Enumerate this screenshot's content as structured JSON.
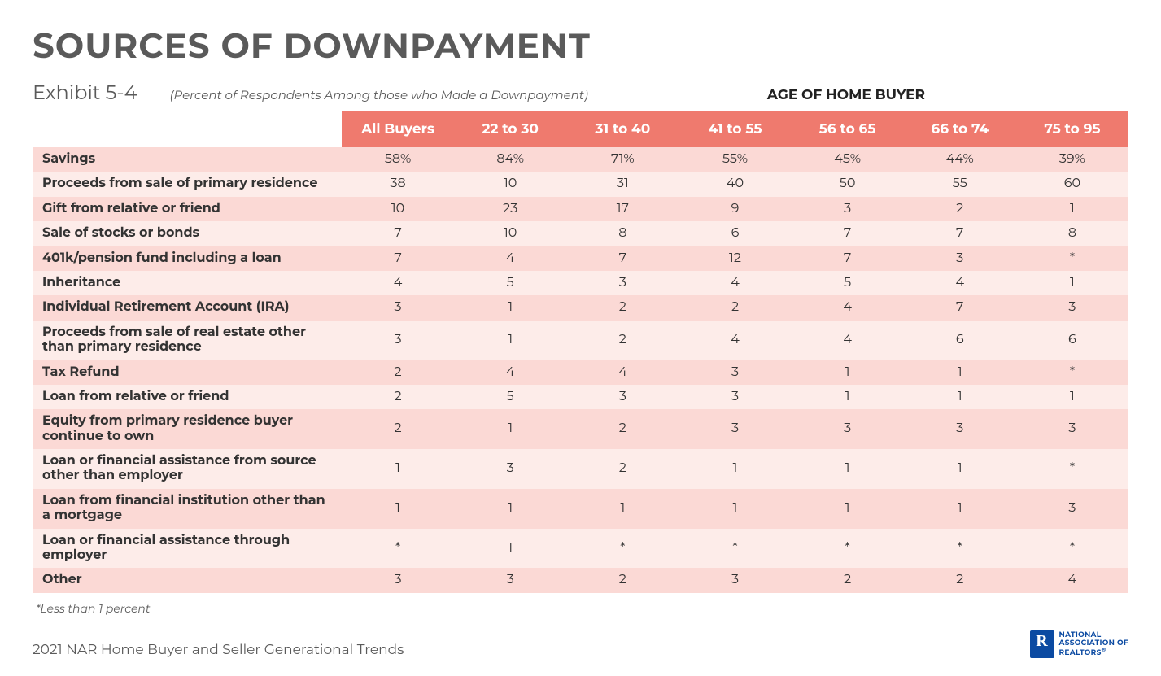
{
  "page": {
    "title": "SOURCES OF DOWNPAYMENT",
    "exhibit": "Exhibit 5-4",
    "subtitle_paren": "(Percent of Respondents Among those who Made a Downpayment)",
    "age_header": "AGE OF HOME BUYER",
    "footnote": "*Less than 1 percent",
    "source_line": "2021 NAR Home Buyer and Seller Generational Trends",
    "logo": {
      "line1": "NATIONAL",
      "line2": "ASSOCIATION OF",
      "line3": "REALTORS",
      "reg": "®"
    }
  },
  "table": {
    "type": "table",
    "header_bg": "#ef7a6e",
    "header_text_color": "#ffffff",
    "row_colors": {
      "odd": "#fbd9d5",
      "even": "#fdece9"
    },
    "label_fontweight": 700,
    "cell_fontsize": 16,
    "header_fontsize": 17,
    "columns": [
      "All Buyers",
      "22 to 30",
      "31 to 40",
      "41 to 55",
      "56 to 65",
      "66 to 74",
      "75 to 95"
    ],
    "rows": [
      {
        "label": "Savings",
        "values": [
          "58%",
          "84%",
          "71%",
          "55%",
          "45%",
          "44%",
          "39%"
        ]
      },
      {
        "label": "Proceeds from sale of primary residence",
        "values": [
          "38",
          "10",
          "31",
          "40",
          "50",
          "55",
          "60"
        ]
      },
      {
        "label": "Gift from relative or friend",
        "values": [
          "10",
          "23",
          "17",
          "9",
          "3",
          "2",
          "1"
        ]
      },
      {
        "label": "Sale of stocks or bonds",
        "values": [
          "7",
          "10",
          "8",
          "6",
          "7",
          "7",
          "8"
        ]
      },
      {
        "label": "401k/pension fund including a loan",
        "values": [
          "7",
          "4",
          "7",
          "12",
          "7",
          "3",
          "*"
        ]
      },
      {
        "label": "Inheritance",
        "values": [
          "4",
          "5",
          "3",
          "4",
          "5",
          "4",
          "1"
        ]
      },
      {
        "label": "Individual Retirement Account (IRA)",
        "values": [
          "3",
          "1",
          "2",
          "2",
          "4",
          "7",
          "3"
        ]
      },
      {
        "label": "Proceeds from sale of real estate other than primary residence",
        "values": [
          "3",
          "1",
          "2",
          "4",
          "4",
          "6",
          "6"
        ]
      },
      {
        "label": "Tax Refund",
        "values": [
          "2",
          "4",
          "4",
          "3",
          "1",
          "1",
          "*"
        ]
      },
      {
        "label": "Loan from relative or friend",
        "values": [
          "2",
          "5",
          "3",
          "3",
          "1",
          "1",
          "1"
        ]
      },
      {
        "label": "Equity from primary residence buyer continue to own",
        "values": [
          "2",
          "1",
          "2",
          "3",
          "3",
          "3",
          "3"
        ]
      },
      {
        "label": "Loan or financial assistance from source other than employer",
        "values": [
          "1",
          "3",
          "2",
          "1",
          "1",
          "1",
          "*"
        ]
      },
      {
        "label": "Loan from financial institution other than a mortgage",
        "values": [
          "1",
          "1",
          "1",
          "1",
          "1",
          "1",
          "3"
        ]
      },
      {
        "label": "Loan or financial assistance through employer",
        "values": [
          "*",
          "1",
          "*",
          "*",
          "*",
          "*",
          "*"
        ]
      },
      {
        "label": "Other",
        "values": [
          "3",
          "3",
          "2",
          "3",
          "2",
          "2",
          "4"
        ]
      }
    ]
  }
}
